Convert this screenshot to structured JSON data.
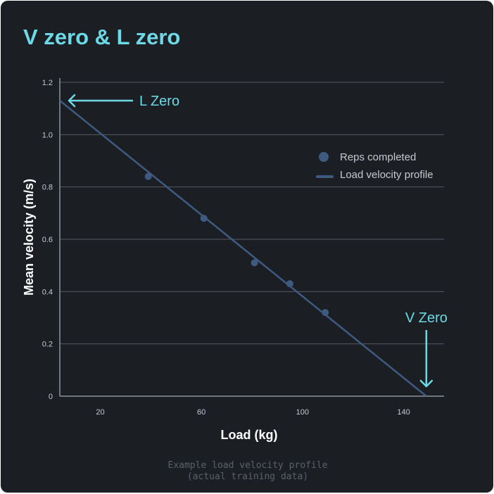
{
  "colors": {
    "background": "#1b1f24",
    "accent": "#6ed9e6",
    "series": "#3f5a80",
    "grid": "#555a60",
    "axis_text": "#c6cacf",
    "caption": "#5c6168"
  },
  "caption": {
    "line1": "Example load velocity profile",
    "line2": "(actual training data)"
  },
  "chart_data": {
    "type": "scatter",
    "title": "V zero & L zero",
    "xlabel": "Load (kg)",
    "ylabel": "Mean velocity (m/s)",
    "xlim": [
      4,
      156
    ],
    "ylim": [
      0,
      1.2
    ],
    "x_ticks": [
      20,
      60,
      100,
      140
    ],
    "x_tick_labels": [
      "20",
      "60",
      "100",
      "140"
    ],
    "y_ticks": [
      0,
      0.2,
      0.4,
      0.6,
      0.8,
      1.0,
      1.2
    ],
    "y_tick_labels": [
      "0",
      "0.2",
      "0.4",
      "0.6",
      "0.8",
      "1.0",
      "1.2"
    ],
    "grid": "horizontal",
    "legend_position": "top-right",
    "series": [
      {
        "name": "Reps completed",
        "kind": "scatter",
        "points": [
          {
            "x": 39,
            "y": 0.84
          },
          {
            "x": 61,
            "y": 0.68
          },
          {
            "x": 81,
            "y": 0.51
          },
          {
            "x": 95,
            "y": 0.43
          },
          {
            "x": 109,
            "y": 0.32
          }
        ]
      },
      {
        "name": "Load velocity profile",
        "kind": "line",
        "points": [
          {
            "x": 4,
            "y": 1.13
          },
          {
            "x": 149,
            "y": 0.0
          }
        ]
      }
    ],
    "annotations": [
      {
        "name": "l-zero",
        "text": "L Zero",
        "x": 4,
        "y": 1.13,
        "arrow": "left"
      },
      {
        "name": "v-zero",
        "text": "V Zero",
        "x": 149,
        "y": 0.0,
        "arrow": "down"
      }
    ]
  }
}
